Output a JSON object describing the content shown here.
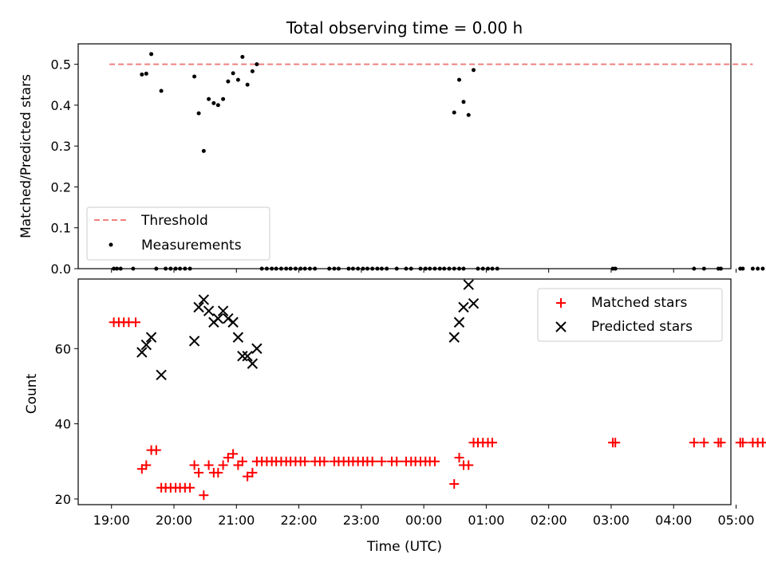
{
  "chart_data": {
    "title": "Total observing time = 0.00 h",
    "xlabel": "Time (UTC)",
    "xlim": [
      -0.3,
      10.15
    ],
    "xticks": [
      {
        "x": 0.233,
        "label": "19:00"
      },
      {
        "x": 1.233,
        "label": "20:00"
      },
      {
        "x": 2.233,
        "label": "21:00"
      },
      {
        "x": 3.233,
        "label": "22:00"
      },
      {
        "x": 4.233,
        "label": "23:00"
      },
      {
        "x": 5.233,
        "label": "00:00"
      },
      {
        "x": 6.233,
        "label": "01:00"
      },
      {
        "x": 7.233,
        "label": "02:00"
      },
      {
        "x": 8.233,
        "label": "03:00"
      },
      {
        "x": 9.233,
        "label": "04:00"
      },
      {
        "x": 10.233,
        "label": "05:00"
      }
    ],
    "panels": [
      {
        "type": "scatter",
        "ylabel": "Matched/Predicted stars",
        "ylim": [
          0,
          0.55
        ],
        "yticks": [
          "0.0",
          "0.1",
          "0.2",
          "0.3",
          "0.4",
          "0.5"
        ],
        "legend": "lower-left",
        "threshold": {
          "name": "Threshold",
          "value": 0.5,
          "x": [
            0.2,
            10.5
          ],
          "color": "#f08080"
        },
        "series": [
          {
            "name": "Measurements",
            "color": "#000000",
            "points": [
              [
                0.27,
                0
              ],
              [
                0.32,
                0
              ],
              [
                0.38,
                0
              ],
              [
                0.58,
                0
              ],
              [
                0.72,
                0.475
              ],
              [
                0.79,
                0.477
              ],
              [
                0.87,
                0.525
              ],
              [
                0.95,
                0
              ],
              [
                1.03,
                0.435
              ],
              [
                1.1,
                0
              ],
              [
                1.18,
                0
              ],
              [
                1.26,
                0
              ],
              [
                1.33,
                0
              ],
              [
                1.41,
                0
              ],
              [
                1.49,
                0
              ],
              [
                1.56,
                0.47
              ],
              [
                1.63,
                0.38
              ],
              [
                1.71,
                0.288
              ],
              [
                1.79,
                0.415
              ],
              [
                1.87,
                0.405
              ],
              [
                1.94,
                0.4
              ],
              [
                2.02,
                0.415
              ],
              [
                2.1,
                0.458
              ],
              [
                2.18,
                0.478
              ],
              [
                2.26,
                0.462
              ],
              [
                2.33,
                0.518
              ],
              [
                2.41,
                0.45
              ],
              [
                2.49,
                0.483
              ],
              [
                2.56,
                0.5
              ],
              [
                2.64,
                0
              ],
              [
                2.72,
                0
              ],
              [
                2.8,
                0
              ],
              [
                2.87,
                0
              ],
              [
                2.95,
                0
              ],
              [
                3.03,
                0
              ],
              [
                3.1,
                0
              ],
              [
                3.18,
                0
              ],
              [
                3.26,
                0
              ],
              [
                3.33,
                0
              ],
              [
                3.41,
                0
              ],
              [
                3.49,
                0
              ],
              [
                3.72,
                0
              ],
              [
                3.8,
                0
              ],
              [
                3.87,
                0
              ],
              [
                4.03,
                0
              ],
              [
                4.1,
                0
              ],
              [
                4.18,
                0
              ],
              [
                4.26,
                0
              ],
              [
                4.33,
                0
              ],
              [
                4.41,
                0
              ],
              [
                4.49,
                0
              ],
              [
                4.56,
                0
              ],
              [
                4.64,
                0
              ],
              [
                4.8,
                0
              ],
              [
                4.95,
                0
              ],
              [
                5.03,
                0
              ],
              [
                5.18,
                0
              ],
              [
                5.26,
                0
              ],
              [
                5.33,
                0
              ],
              [
                5.41,
                0
              ],
              [
                5.49,
                0
              ],
              [
                5.56,
                0
              ],
              [
                5.64,
                0
              ],
              [
                5.72,
                0
              ],
              [
                5.8,
                0
              ],
              [
                5.87,
                0
              ],
              [
                5.72,
                0.382
              ],
              [
                5.8,
                0.462
              ],
              [
                5.87,
                0.408
              ],
              [
                5.95,
                0.376
              ],
              [
                6.03,
                0.486
              ],
              [
                6.1,
                0
              ],
              [
                6.18,
                0
              ],
              [
                6.26,
                0
              ],
              [
                6.33,
                0
              ],
              [
                6.41,
                0
              ],
              [
                8.26,
                0
              ],
              [
                8.3,
                0
              ],
              [
                9.56,
                0
              ],
              [
                9.72,
                0
              ],
              [
                9.95,
                0
              ],
              [
                9.99,
                0
              ],
              [
                10.3,
                0
              ],
              [
                10.34,
                0
              ],
              [
                10.5,
                0
              ],
              [
                10.58,
                0
              ],
              [
                10.66,
                0
              ]
            ]
          }
        ]
      },
      {
        "type": "scatter",
        "ylabel": "Count",
        "ylim": [
          18.5,
          78.5
        ],
        "yticks": [
          "20",
          "40",
          "60"
        ],
        "legend": "upper-right",
        "series": [
          {
            "name": "Matched stars",
            "marker": "+",
            "color": "#ff0000",
            "points": [
              [
                0.27,
                67
              ],
              [
                0.35,
                67
              ],
              [
                0.43,
                67
              ],
              [
                0.51,
                67
              ],
              [
                0.62,
                67
              ],
              [
                0.72,
                28
              ],
              [
                0.79,
                29
              ],
              [
                0.87,
                33
              ],
              [
                0.95,
                33
              ],
              [
                1.03,
                23
              ],
              [
                1.1,
                23
              ],
              [
                1.18,
                23
              ],
              [
                1.26,
                23
              ],
              [
                1.33,
                23
              ],
              [
                1.41,
                23
              ],
              [
                1.49,
                23
              ],
              [
                1.56,
                29
              ],
              [
                1.63,
                27
              ],
              [
                1.71,
                21
              ],
              [
                1.79,
                29
              ],
              [
                1.87,
                27
              ],
              [
                1.94,
                27
              ],
              [
                2.02,
                29
              ],
              [
                2.1,
                31
              ],
              [
                2.18,
                32
              ],
              [
                2.26,
                29
              ],
              [
                2.33,
                30
              ],
              [
                2.41,
                26
              ],
              [
                2.49,
                27
              ],
              [
                2.56,
                30
              ],
              [
                2.64,
                30
              ],
              [
                2.72,
                30
              ],
              [
                2.8,
                30
              ],
              [
                2.87,
                30
              ],
              [
                2.95,
                30
              ],
              [
                3.03,
                30
              ],
              [
                3.1,
                30
              ],
              [
                3.18,
                30
              ],
              [
                3.26,
                30
              ],
              [
                3.33,
                30
              ],
              [
                3.49,
                30
              ],
              [
                3.57,
                30
              ],
              [
                3.64,
                30
              ],
              [
                3.8,
                30
              ],
              [
                3.87,
                30
              ],
              [
                3.95,
                30
              ],
              [
                4.03,
                30
              ],
              [
                4.1,
                30
              ],
              [
                4.18,
                30
              ],
              [
                4.26,
                30
              ],
              [
                4.33,
                30
              ],
              [
                4.41,
                30
              ],
              [
                4.56,
                30
              ],
              [
                4.72,
                30
              ],
              [
                4.8,
                30
              ],
              [
                4.95,
                30
              ],
              [
                5.03,
                30
              ],
              [
                5.1,
                30
              ],
              [
                5.18,
                30
              ],
              [
                5.26,
                30
              ],
              [
                5.33,
                30
              ],
              [
                5.41,
                30
              ],
              [
                5.72,
                24
              ],
              [
                5.8,
                31
              ],
              [
                5.87,
                29
              ],
              [
                5.95,
                29
              ],
              [
                6.03,
                35
              ],
              [
                6.1,
                35
              ],
              [
                6.18,
                35
              ],
              [
                6.26,
                35
              ],
              [
                6.33,
                35
              ],
              [
                8.26,
                35
              ],
              [
                8.3,
                35
              ],
              [
                9.56,
                35
              ],
              [
                9.72,
                35
              ],
              [
                9.95,
                35
              ],
              [
                9.99,
                35
              ],
              [
                10.3,
                35
              ],
              [
                10.34,
                35
              ],
              [
                10.5,
                35
              ],
              [
                10.58,
                35
              ],
              [
                10.66,
                35
              ]
            ]
          },
          {
            "name": "Predicted stars",
            "marker": "x",
            "color": "#000000",
            "points": [
              [
                0.72,
                59
              ],
              [
                0.79,
                61
              ],
              [
                0.87,
                63
              ],
              [
                1.03,
                53
              ],
              [
                1.56,
                62
              ],
              [
                1.63,
                71
              ],
              [
                1.71,
                73
              ],
              [
                1.79,
                70
              ],
              [
                1.87,
                67
              ],
              [
                1.94,
                68
              ],
              [
                2.02,
                70
              ],
              [
                2.1,
                68
              ],
              [
                2.18,
                67
              ],
              [
                2.26,
                63
              ],
              [
                2.33,
                58
              ],
              [
                2.41,
                58
              ],
              [
                2.49,
                56
              ],
              [
                2.56,
                60
              ],
              [
                5.72,
                63
              ],
              [
                5.8,
                67
              ],
              [
                5.87,
                71
              ],
              [
                5.95,
                77
              ],
              [
                6.03,
                72
              ]
            ]
          }
        ]
      }
    ]
  }
}
